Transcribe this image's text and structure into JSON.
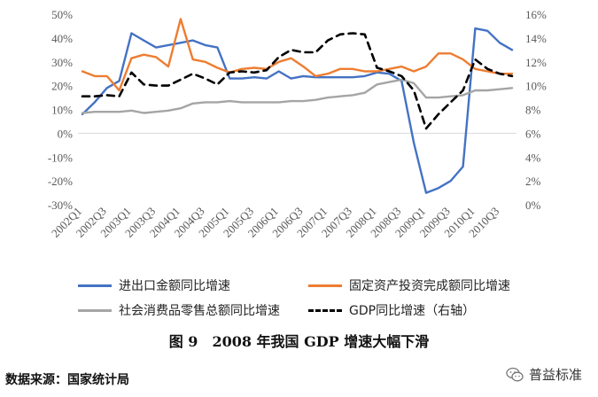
{
  "chart_data": {
    "type": "line",
    "x": [
      "2002Q1",
      "2002Q2",
      "2002Q3",
      "2002Q4",
      "2003Q1",
      "2003Q2",
      "2003Q3",
      "2003Q4",
      "2004Q1",
      "2004Q2",
      "2004Q3",
      "2004Q4",
      "2005Q1",
      "2005Q2",
      "2005Q3",
      "2005Q4",
      "2006Q1",
      "2006Q2",
      "2006Q3",
      "2006Q4",
      "2007Q1",
      "2007Q2",
      "2007Q3",
      "2007Q4",
      "2008Q1",
      "2008Q2",
      "2008Q3",
      "2008Q4",
      "2009Q1",
      "2009Q2",
      "2009Q3",
      "2009Q4",
      "2010Q1",
      "2010Q2",
      "2010Q3",
      "2010Q4"
    ],
    "x_tick_labels": [
      "2002Q1",
      "2002Q3",
      "2003Q1",
      "2003Q3",
      "2004Q1",
      "2004Q3",
      "2005Q1",
      "2005Q3",
      "2006Q1",
      "2006Q3",
      "2007Q1",
      "2007Q3",
      "2008Q1",
      "2008Q3",
      "2009Q1",
      "2009Q3",
      "2010Q1",
      "2010Q3"
    ],
    "y_left": {
      "min": -30,
      "max": 50,
      "step": 10,
      "unit": "%"
    },
    "y_right": {
      "min": 0,
      "max": 16,
      "step": 2,
      "unit": "%"
    },
    "series": [
      {
        "name": "进出口金额同比增速",
        "axis": "left",
        "color": "#4472C4",
        "dash": "solid",
        "values": [
          8,
          13,
          19,
          22,
          42,
          39,
          36,
          37,
          38,
          39,
          37,
          36,
          23,
          23,
          23.5,
          23,
          26,
          23,
          24,
          23.5,
          23.5,
          23.5,
          23.5,
          24,
          25.5,
          25,
          22,
          -4,
          -25,
          -23,
          -20,
          -14,
          44,
          43,
          38,
          35
        ]
      },
      {
        "name": "固定资产投资完成额同比增速",
        "axis": "left",
        "color": "#ED7D31",
        "dash": "solid",
        "values": [
          26,
          24,
          24,
          18,
          31.5,
          33,
          32,
          28,
          48,
          31,
          30,
          27.5,
          25.5,
          27,
          27.5,
          27,
          30,
          31.5,
          28,
          24,
          25,
          27,
          27,
          26,
          26,
          27,
          28,
          26,
          28,
          33.5,
          33.5,
          31,
          27,
          26,
          25,
          25
        ]
      },
      {
        "name": "社会消费品零售总额同比增速",
        "axis": "left",
        "color": "#A5A5A5",
        "dash": "solid",
        "values": [
          8.5,
          9,
          9,
          9,
          9.5,
          8.5,
          9,
          9.5,
          10.5,
          12.5,
          13,
          13,
          13.5,
          13,
          13,
          13,
          13,
          13.5,
          13.5,
          14,
          15,
          15.5,
          16,
          17,
          20.5,
          21.5,
          22.5,
          21,
          15,
          15,
          15.5,
          16,
          18,
          18,
          18.5,
          19
        ]
      },
      {
        "name": "GDP同比增速（右轴）",
        "axis": "right",
        "color": "#000000",
        "dash": "dashed",
        "values": [
          9.1,
          9.1,
          9.2,
          9.1,
          11.1,
          10.1,
          10,
          10,
          10.5,
          11,
          10.6,
          10.1,
          11.1,
          11.2,
          11.1,
          11.3,
          12.4,
          13,
          12.8,
          12.8,
          13.8,
          14.3,
          14.4,
          14.3,
          11.5,
          11.2,
          10.8,
          9.6,
          6.4,
          7.6,
          8.6,
          9.6,
          12.2,
          11.4,
          11,
          10.8
        ]
      }
    ],
    "legend_position": "bottom",
    "grid": false
  },
  "caption": "图 9　2008 年我国 GDP 增速大幅下滑",
  "source": "数据来源：国家统计局",
  "watermark": "普益标准",
  "watermark_icon": "wechat-icon"
}
